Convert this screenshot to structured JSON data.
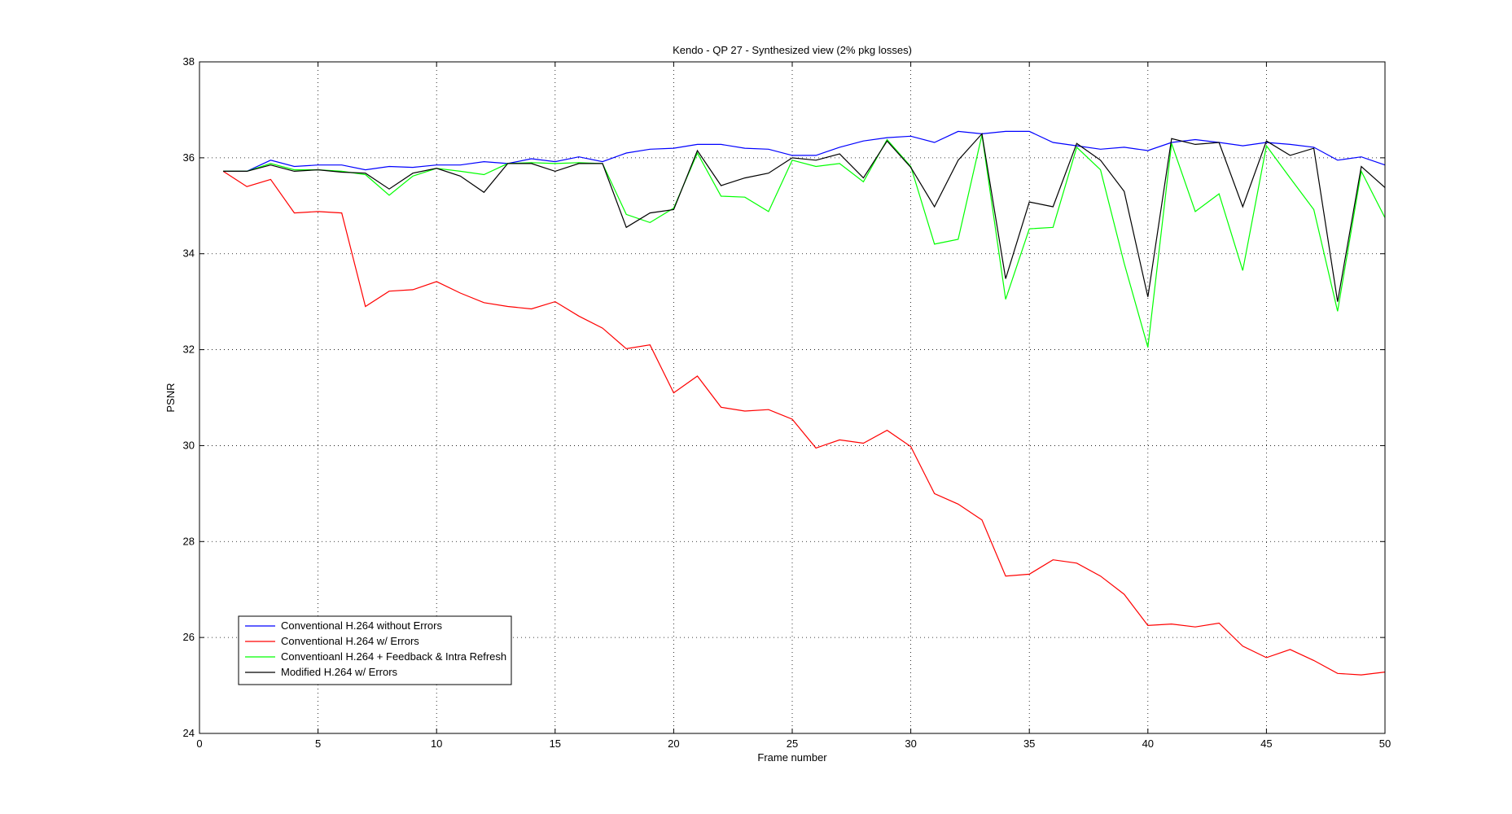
{
  "chart_data": {
    "type": "line",
    "title": "Kendo - QP 27 - Synthesized view (2% pkg losses)",
    "xlabel": "Frame number",
    "ylabel": "PSNR",
    "xlim": [
      0,
      50
    ],
    "ylim": [
      24,
      38
    ],
    "xticks": [
      0,
      5,
      10,
      15,
      20,
      25,
      30,
      35,
      40,
      45,
      50
    ],
    "yticks": [
      24,
      26,
      28,
      30,
      32,
      34,
      36,
      38
    ],
    "grid": true,
    "legend_position": "bottom-left",
    "x": [
      1,
      2,
      3,
      4,
      5,
      6,
      7,
      8,
      9,
      10,
      11,
      12,
      13,
      14,
      15,
      16,
      17,
      18,
      19,
      20,
      21,
      22,
      23,
      24,
      25,
      26,
      27,
      28,
      29,
      30,
      31,
      32,
      33,
      34,
      35,
      36,
      37,
      38,
      39,
      40,
      41,
      42,
      43,
      44,
      45,
      46,
      47,
      48,
      49,
      50
    ],
    "series": [
      {
        "name": "Conventional H.264 without Errors",
        "color": "#0000ff",
        "values": [
          35.72,
          35.72,
          35.95,
          35.82,
          35.85,
          35.85,
          35.75,
          35.82,
          35.8,
          35.85,
          35.85,
          35.92,
          35.88,
          35.98,
          35.92,
          36.02,
          35.92,
          36.1,
          36.18,
          36.2,
          36.28,
          36.28,
          36.2,
          36.18,
          36.05,
          36.05,
          36.22,
          36.35,
          36.42,
          36.45,
          36.32,
          36.55,
          36.5,
          36.55,
          36.55,
          36.32,
          36.25,
          36.18,
          36.22,
          36.15,
          36.32,
          36.38,
          36.32,
          36.25,
          36.32,
          36.28,
          36.22,
          35.95,
          36.02,
          35.85
        ]
      },
      {
        "name": "Conventional H.264 w/ Errors",
        "color": "#ff0000",
        "values": [
          35.72,
          35.4,
          35.55,
          34.85,
          34.88,
          34.85,
          32.9,
          33.22,
          33.25,
          33.42,
          33.18,
          32.98,
          32.9,
          32.85,
          33.0,
          32.7,
          32.45,
          32.02,
          32.1,
          31.1,
          31.45,
          30.8,
          30.72,
          30.75,
          30.55,
          29.95,
          30.12,
          30.05,
          30.32,
          29.98,
          29.0,
          28.78,
          28.45,
          27.28,
          27.32,
          27.62,
          27.55,
          27.28,
          26.9,
          26.25,
          26.28,
          26.22,
          26.3,
          25.82,
          25.58,
          25.75,
          25.52,
          25.25,
          25.22,
          25.28
        ]
      },
      {
        "name": "Conventioanl H.264 + Feedback & Intra Refresh",
        "color": "#00ff00",
        "values": [
          35.72,
          35.72,
          35.88,
          35.75,
          35.75,
          35.72,
          35.65,
          35.22,
          35.62,
          35.78,
          35.72,
          35.65,
          35.88,
          35.9,
          35.88,
          35.9,
          35.88,
          34.82,
          34.65,
          34.95,
          36.1,
          35.2,
          35.18,
          34.88,
          35.95,
          35.82,
          35.88,
          35.5,
          36.38,
          35.82,
          34.2,
          34.3,
          36.48,
          33.05,
          34.52,
          34.55,
          36.22,
          35.75,
          33.8,
          32.05,
          36.3,
          34.88,
          35.25,
          33.65,
          36.25,
          35.58,
          34.92,
          32.8,
          35.72,
          34.75
        ]
      },
      {
        "name": "Modified H.264 w/ Errors",
        "color": "#000000",
        "values": [
          35.72,
          35.72,
          35.85,
          35.72,
          35.75,
          35.7,
          35.68,
          35.35,
          35.68,
          35.78,
          35.62,
          35.28,
          35.88,
          35.88,
          35.72,
          35.88,
          35.88,
          34.55,
          34.85,
          34.92,
          36.15,
          35.42,
          35.58,
          35.68,
          36.0,
          35.95,
          36.08,
          35.58,
          36.35,
          35.8,
          34.98,
          35.95,
          36.5,
          33.48,
          35.08,
          34.98,
          36.3,
          35.95,
          35.3,
          33.1,
          36.4,
          36.28,
          36.32,
          34.98,
          36.35,
          36.05,
          36.2,
          33.0,
          35.82,
          35.38
        ]
      }
    ]
  }
}
